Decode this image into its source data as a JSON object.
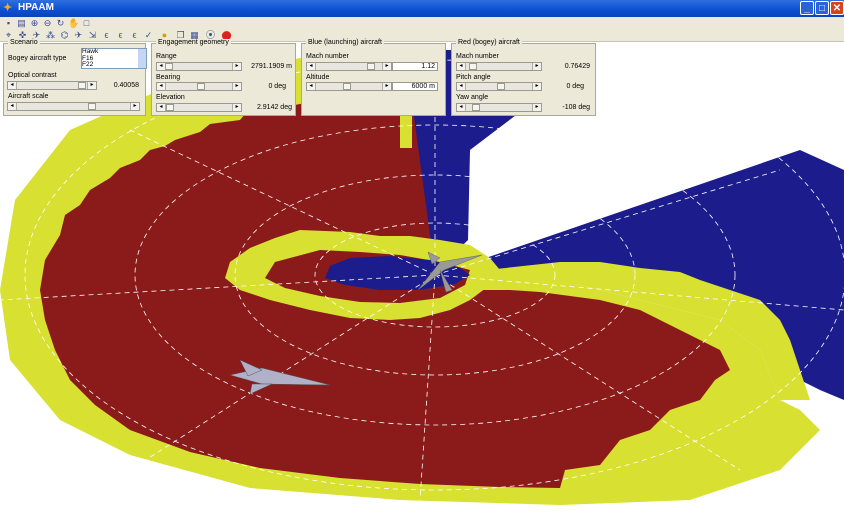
{
  "window": {
    "title": "HPAAM",
    "controls": [
      "_",
      "□",
      "✕"
    ]
  },
  "toolbar1_icons": [
    "save-icon",
    "print-icon",
    "zoom-in-icon",
    "zoom-out-icon",
    "rotate-icon",
    "pan-icon",
    "new-figure-icon"
  ],
  "toolbar2_icons": [
    "measure-icon",
    "target-icon",
    "aircraft-icon",
    "formation-icon",
    "radar-icon",
    "jet-icon",
    "missile-icon",
    "missile2-icon",
    "missile3-icon",
    "check-icon",
    "bulb-icon",
    "copy-icon",
    "table-icon",
    "plot-icon",
    "stop-icon"
  ],
  "scenario": {
    "legend": "Scenario",
    "bogey_type_label": "Bogey aircraft type",
    "bogey_options": [
      "Hawk",
      "F16",
      "F22"
    ],
    "optical_contrast_label": "Optical contrast",
    "optical_contrast_value": "0.40058",
    "aircraft_scale_label": "Aircraft scale"
  },
  "engagement": {
    "legend": "Engagement geometry",
    "range_label": "Range",
    "range_value": "2791.1909 m",
    "bearing_label": "Bearing",
    "bearing_value": "0 deg",
    "elevation_label": "Elevation",
    "elevation_value": "2.9142 deg"
  },
  "blue": {
    "legend": "Blue (launching) aircraft",
    "mach_label": "Mach number",
    "mach_value": "1.12",
    "altitude_label": "Altitude",
    "altitude_value": "6000 m"
  },
  "red": {
    "legend": "Red (bogey) aircraft",
    "mach_label": "Mach number",
    "mach_value": "0.76429",
    "pitch_label": "Pitch angle",
    "pitch_value": "0 deg",
    "yaw_label": "Yaw angle",
    "yaw_value": "-108 deg"
  },
  "plot_colors": {
    "red_zone": "#8b1a1a",
    "yellow_zone": "#d8e031",
    "blue_zone": "#1c1c8c",
    "grid": "#ffffff"
  }
}
